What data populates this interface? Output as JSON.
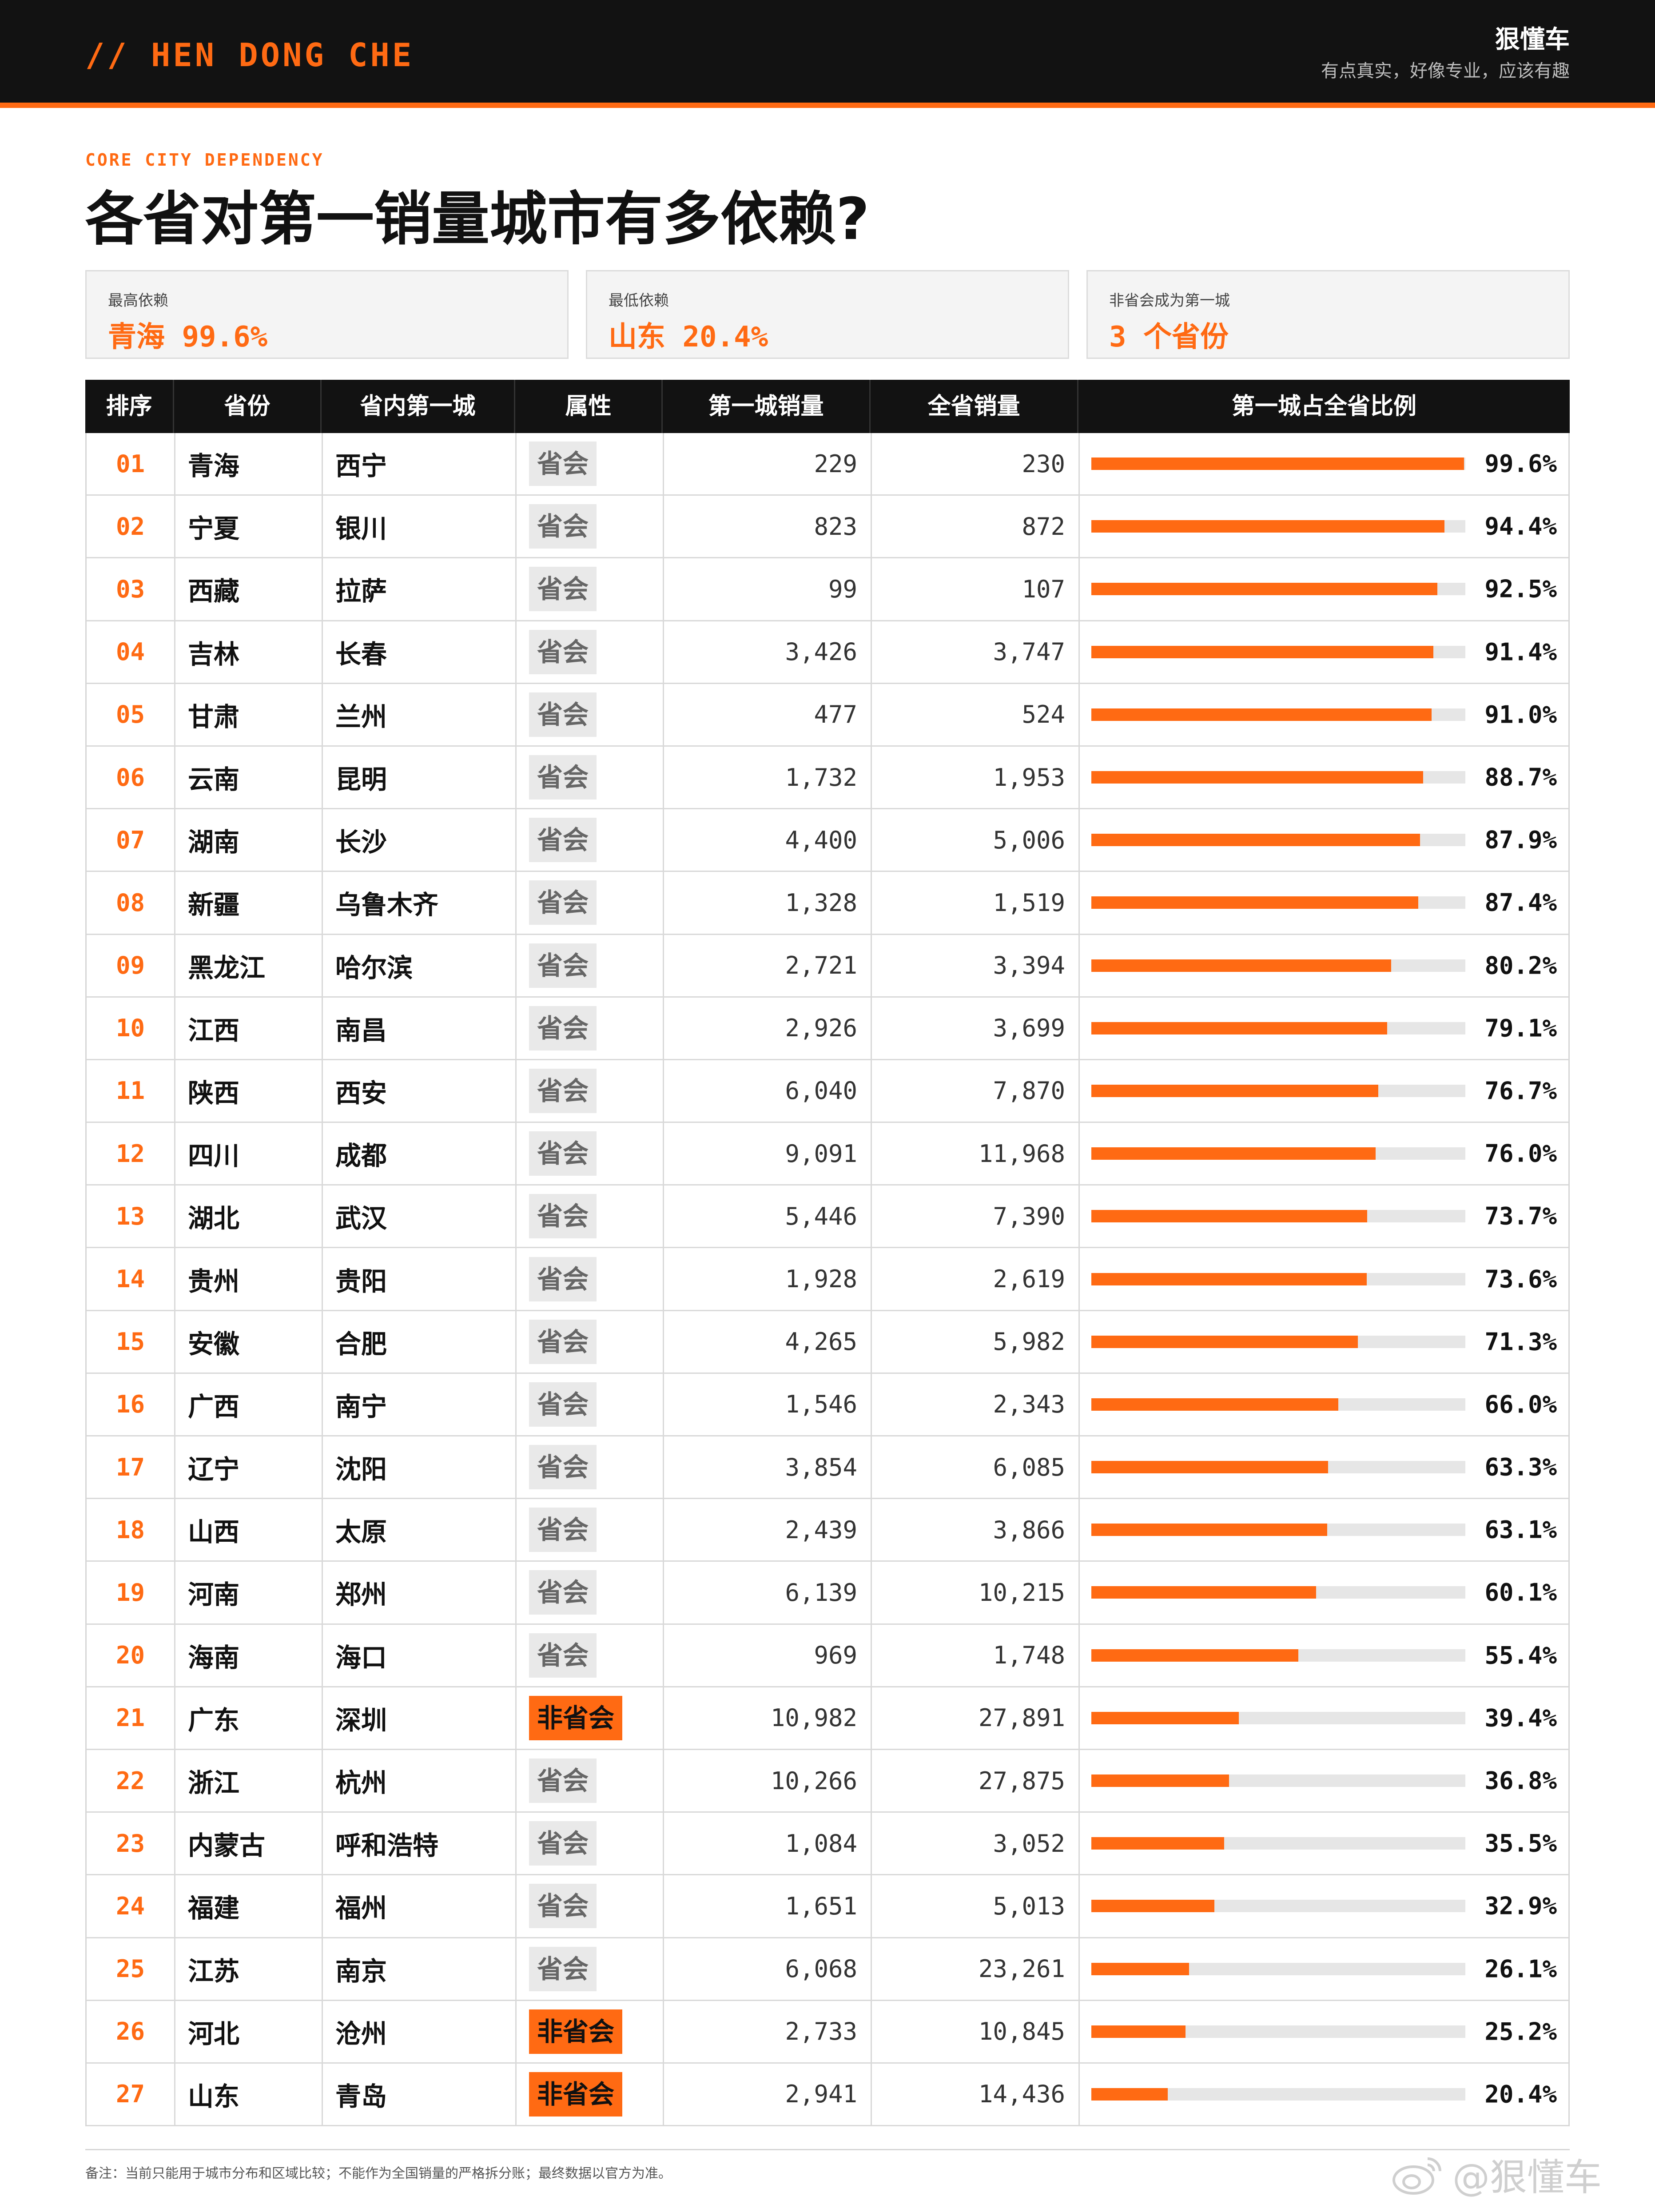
{
  "header": {
    "brand": "// HEN DONG CHE",
    "name": "狠懂车",
    "slogan": "有点真实，好像专业，应该有趣"
  },
  "eyebrow": "CORE CITY DEPENDENCY",
  "title": "各省对第一销量城市有多依赖?",
  "cards": [
    {
      "label": "最高依赖",
      "value": "青海 99.6%"
    },
    {
      "label": "最低依赖",
      "value": "山东 20.4%"
    },
    {
      "label": "非省会成为第一城",
      "value": "3 个省份"
    }
  ],
  "table": {
    "columns": [
      "排序",
      "省份",
      "省内第一城",
      "属性",
      "第一城销量",
      "全省销量",
      "第一城占全省比例"
    ],
    "rows": [
      {
        "rank": "01",
        "province": "青海",
        "city": "西宁",
        "attr": "省会",
        "capital": true,
        "first": "229",
        "total": "230",
        "pct": "99.6%",
        "ratio": 99.6
      },
      {
        "rank": "02",
        "province": "宁夏",
        "city": "银川",
        "attr": "省会",
        "capital": true,
        "first": "823",
        "total": "872",
        "pct": "94.4%",
        "ratio": 94.4
      },
      {
        "rank": "03",
        "province": "西藏",
        "city": "拉萨",
        "attr": "省会",
        "capital": true,
        "first": "99",
        "total": "107",
        "pct": "92.5%",
        "ratio": 92.5
      },
      {
        "rank": "04",
        "province": "吉林",
        "city": "长春",
        "attr": "省会",
        "capital": true,
        "first": "3,426",
        "total": "3,747",
        "pct": "91.4%",
        "ratio": 91.4
      },
      {
        "rank": "05",
        "province": "甘肃",
        "city": "兰州",
        "attr": "省会",
        "capital": true,
        "first": "477",
        "total": "524",
        "pct": "91.0%",
        "ratio": 91.0
      },
      {
        "rank": "06",
        "province": "云南",
        "city": "昆明",
        "attr": "省会",
        "capital": true,
        "first": "1,732",
        "total": "1,953",
        "pct": "88.7%",
        "ratio": 88.7
      },
      {
        "rank": "07",
        "province": "湖南",
        "city": "长沙",
        "attr": "省会",
        "capital": true,
        "first": "4,400",
        "total": "5,006",
        "pct": "87.9%",
        "ratio": 87.9
      },
      {
        "rank": "08",
        "province": "新疆",
        "city": "乌鲁木齐",
        "attr": "省会",
        "capital": true,
        "first": "1,328",
        "total": "1,519",
        "pct": "87.4%",
        "ratio": 87.4
      },
      {
        "rank": "09",
        "province": "黑龙江",
        "city": "哈尔滨",
        "attr": "省会",
        "capital": true,
        "first": "2,721",
        "total": "3,394",
        "pct": "80.2%",
        "ratio": 80.2
      },
      {
        "rank": "10",
        "province": "江西",
        "city": "南昌",
        "attr": "省会",
        "capital": true,
        "first": "2,926",
        "total": "3,699",
        "pct": "79.1%",
        "ratio": 79.1
      },
      {
        "rank": "11",
        "province": "陕西",
        "city": "西安",
        "attr": "省会",
        "capital": true,
        "first": "6,040",
        "total": "7,870",
        "pct": "76.7%",
        "ratio": 76.7
      },
      {
        "rank": "12",
        "province": "四川",
        "city": "成都",
        "attr": "省会",
        "capital": true,
        "first": "9,091",
        "total": "11,968",
        "pct": "76.0%",
        "ratio": 76.0
      },
      {
        "rank": "13",
        "province": "湖北",
        "city": "武汉",
        "attr": "省会",
        "capital": true,
        "first": "5,446",
        "total": "7,390",
        "pct": "73.7%",
        "ratio": 73.7
      },
      {
        "rank": "14",
        "province": "贵州",
        "city": "贵阳",
        "attr": "省会",
        "capital": true,
        "first": "1,928",
        "total": "2,619",
        "pct": "73.6%",
        "ratio": 73.6
      },
      {
        "rank": "15",
        "province": "安徽",
        "city": "合肥",
        "attr": "省会",
        "capital": true,
        "first": "4,265",
        "total": "5,982",
        "pct": "71.3%",
        "ratio": 71.3
      },
      {
        "rank": "16",
        "province": "广西",
        "city": "南宁",
        "attr": "省会",
        "capital": true,
        "first": "1,546",
        "total": "2,343",
        "pct": "66.0%",
        "ratio": 66.0
      },
      {
        "rank": "17",
        "province": "辽宁",
        "city": "沈阳",
        "attr": "省会",
        "capital": true,
        "first": "3,854",
        "total": "6,085",
        "pct": "63.3%",
        "ratio": 63.3
      },
      {
        "rank": "18",
        "province": "山西",
        "city": "太原",
        "attr": "省会",
        "capital": true,
        "first": "2,439",
        "total": "3,866",
        "pct": "63.1%",
        "ratio": 63.1
      },
      {
        "rank": "19",
        "province": "河南",
        "city": "郑州",
        "attr": "省会",
        "capital": true,
        "first": "6,139",
        "total": "10,215",
        "pct": "60.1%",
        "ratio": 60.1
      },
      {
        "rank": "20",
        "province": "海南",
        "city": "海口",
        "attr": "省会",
        "capital": true,
        "first": "969",
        "total": "1,748",
        "pct": "55.4%",
        "ratio": 55.4
      },
      {
        "rank": "21",
        "province": "广东",
        "city": "深圳",
        "attr": "非省会",
        "capital": false,
        "first": "10,982",
        "total": "27,891",
        "pct": "39.4%",
        "ratio": 39.4
      },
      {
        "rank": "22",
        "province": "浙江",
        "city": "杭州",
        "attr": "省会",
        "capital": true,
        "first": "10,266",
        "total": "27,875",
        "pct": "36.8%",
        "ratio": 36.8
      },
      {
        "rank": "23",
        "province": "内蒙古",
        "city": "呼和浩特",
        "attr": "省会",
        "capital": true,
        "first": "1,084",
        "total": "3,052",
        "pct": "35.5%",
        "ratio": 35.5
      },
      {
        "rank": "24",
        "province": "福建",
        "city": "福州",
        "attr": "省会",
        "capital": true,
        "first": "1,651",
        "total": "5,013",
        "pct": "32.9%",
        "ratio": 32.9
      },
      {
        "rank": "25",
        "province": "江苏",
        "city": "南京",
        "attr": "省会",
        "capital": true,
        "first": "6,068",
        "total": "23,261",
        "pct": "26.1%",
        "ratio": 26.1
      },
      {
        "rank": "26",
        "province": "河北",
        "city": "沧州",
        "attr": "非省会",
        "capital": false,
        "first": "2,733",
        "total": "10,845",
        "pct": "25.2%",
        "ratio": 25.2
      },
      {
        "rank": "27",
        "province": "山东",
        "city": "青岛",
        "attr": "非省会",
        "capital": false,
        "first": "2,941",
        "total": "14,436",
        "pct": "20.4%",
        "ratio": 20.4
      }
    ]
  },
  "footer": {
    "note": "备注：当前只能用于城市分布和区域比较；不能作为全国销量的严格拆分账；最终数据以官方为准。",
    "watermark": "@狠懂车"
  },
  "colors": {
    "accent": "#ff6a13",
    "dark": "#121212"
  }
}
